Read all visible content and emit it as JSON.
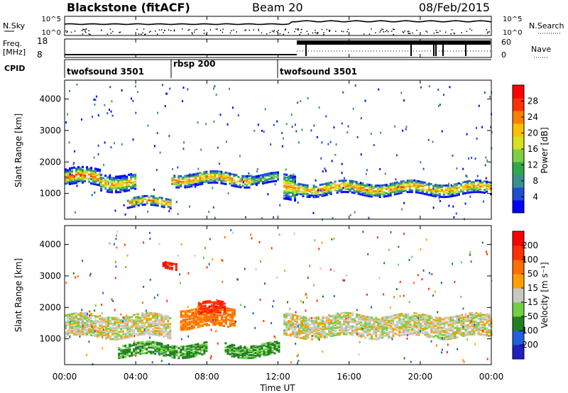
{
  "header": {
    "station": "Blackstone (fitACF)",
    "beam": "Beam 20",
    "date": "08/Feb/2015"
  },
  "strips": {
    "nsky_label": "N.Sky",
    "nsky_ticks": [
      "10^5",
      "10^0"
    ],
    "nsearch_label": "N.Search",
    "nsearch_ticks": [
      "10^5",
      "10^0"
    ],
    "freq_label_1": "Freq.",
    "freq_label_2": "[MHz]",
    "freq_ticks": [
      "18",
      "8"
    ],
    "nave_label": "Nave",
    "nave_ticks": [
      "60",
      "0"
    ],
    "cpid_label": "CPID",
    "cpid_segments": [
      {
        "label": "twofsound 3501",
        "start": 0,
        "end": 6
      },
      {
        "label": "rbsp 200",
        "start": 6,
        "end": 12
      },
      {
        "label": "twofsound 3501",
        "start": 12,
        "end": 24
      }
    ]
  },
  "x_axis": {
    "label": "Time UT",
    "ticks": [
      "00:00",
      "04:00",
      "08:00",
      "12:00",
      "16:00",
      "20:00",
      "00:00"
    ]
  },
  "chart_data": [
    {
      "type": "heatmap",
      "title": "",
      "ylabel": "Slant Range [km]",
      "xlabel": "Time UT",
      "xlim": [
        0,
        24
      ],
      "ylim": [
        180,
        4600
      ],
      "yticks": [
        1000,
        2000,
        3000,
        4000
      ],
      "colorbar": {
        "label": "Power [dB]",
        "ticks": [
          "28",
          "24",
          "20",
          "16",
          "12",
          "8",
          "4"
        ],
        "range": [
          0,
          30
        ],
        "colors": [
          "#0000ff",
          "#1f4fd0",
          "#3a8f8f",
          "#2fa84a",
          "#7fd040",
          "#d8e020",
          "#ffc000",
          "#ff8000",
          "#ff3000",
          "#ff0000"
        ]
      },
      "bands": [
        {
          "start": 0.0,
          "end": 2.0,
          "low": 1300,
          "high": 1800,
          "peak": 26
        },
        {
          "start": 2.0,
          "end": 4.0,
          "low": 1150,
          "high": 1650,
          "peak": 22
        },
        {
          "start": 3.5,
          "end": 6.0,
          "low": 600,
          "high": 900,
          "peak": 24
        },
        {
          "start": 6.0,
          "end": 10.5,
          "low": 1300,
          "high": 1700,
          "peak": 24
        },
        {
          "start": 10.5,
          "end": 12.0,
          "low": 1350,
          "high": 1650,
          "peak": 14
        },
        {
          "start": 12.3,
          "end": 13.0,
          "low": 800,
          "high": 1600,
          "peak": 22
        },
        {
          "start": 13.0,
          "end": 24.0,
          "low": 1000,
          "high": 1400,
          "peak": 24
        }
      ]
    },
    {
      "type": "heatmap",
      "title": "",
      "ylabel": "Slant Range [km]",
      "xlabel": "Time UT",
      "xlim": [
        0,
        24
      ],
      "ylim": [
        180,
        4600
      ],
      "yticks": [
        1000,
        2000,
        3000,
        4000
      ],
      "colorbar": {
        "label": "Velocity [m s⁻¹]",
        "ticks": [
          "200",
          "100",
          "50",
          "15",
          "-15",
          "-50",
          "-100",
          "-200"
        ],
        "range": [
          -250,
          250
        ],
        "colors": [
          "#2020c0",
          "#2060e0",
          "#208020",
          "#70d040",
          "#c8c8c0",
          "#ffa000",
          "#ff7000",
          "#ff3000",
          "#ff0000"
        ]
      },
      "bands": [
        {
          "start": 0.0,
          "end": 6.0,
          "low": 1100,
          "high": 1800,
          "velocity": 0
        },
        {
          "start": 3.0,
          "end": 8.0,
          "low": 500,
          "high": 900,
          "velocity": -60
        },
        {
          "start": 6.5,
          "end": 9.5,
          "low": 1400,
          "high": 2000,
          "velocity": 70
        },
        {
          "start": 7.5,
          "end": 9.0,
          "low": 1800,
          "high": 2200,
          "velocity": 180
        },
        {
          "start": 9.0,
          "end": 12.0,
          "low": 500,
          "high": 900,
          "velocity": -60
        },
        {
          "start": 12.3,
          "end": 24.0,
          "low": 1100,
          "high": 1800,
          "velocity": 0
        },
        {
          "start": 5.5,
          "end": 6.3,
          "low": 3300,
          "high": 3500,
          "velocity": 200
        }
      ]
    }
  ]
}
